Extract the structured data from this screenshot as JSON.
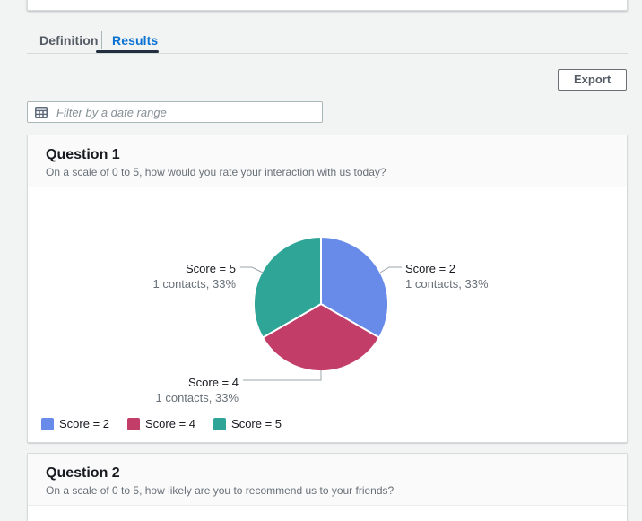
{
  "tabs": {
    "items": [
      {
        "label": "Definition",
        "active": false
      },
      {
        "label": "Results",
        "active": true
      }
    ]
  },
  "toolbar": {
    "export_label": "Export"
  },
  "filter": {
    "placeholder": "Filter by a date range",
    "value": "",
    "icon": "calendar-icon"
  },
  "questions": [
    {
      "title": "Question 1",
      "subtitle": "On a scale of 0 to 5, how would you rate your interaction with us today?"
    },
    {
      "title": "Question 2",
      "subtitle": "On a scale of 0 to 5, how likely are you to recommend us to your friends?"
    }
  ],
  "chart_data": {
    "type": "pie",
    "unit": "contacts",
    "legend_position": "bottom-left",
    "segments": [
      {
        "key": "score-2",
        "label": "Score = 2",
        "value": 1,
        "percent": 33,
        "detail": "1 contacts, 33%",
        "color": "#688ae8"
      },
      {
        "key": "score-4",
        "label": "Score = 4",
        "value": 1,
        "percent": 33,
        "detail": "1 contacts, 33%",
        "color": "#c33d69"
      },
      {
        "key": "score-5",
        "label": "Score = 5",
        "value": 1,
        "percent": 33,
        "detail": "1 contacts, 33%",
        "color": "#2ea597"
      }
    ],
    "legend": [
      "Score = 2",
      "Score = 4",
      "Score = 5"
    ]
  },
  "colors": {
    "tab_active": "#0972d3",
    "tab_underline": "#232f3e",
    "page_background": "#f2f3f3",
    "card_header_background": "#fafafa"
  }
}
